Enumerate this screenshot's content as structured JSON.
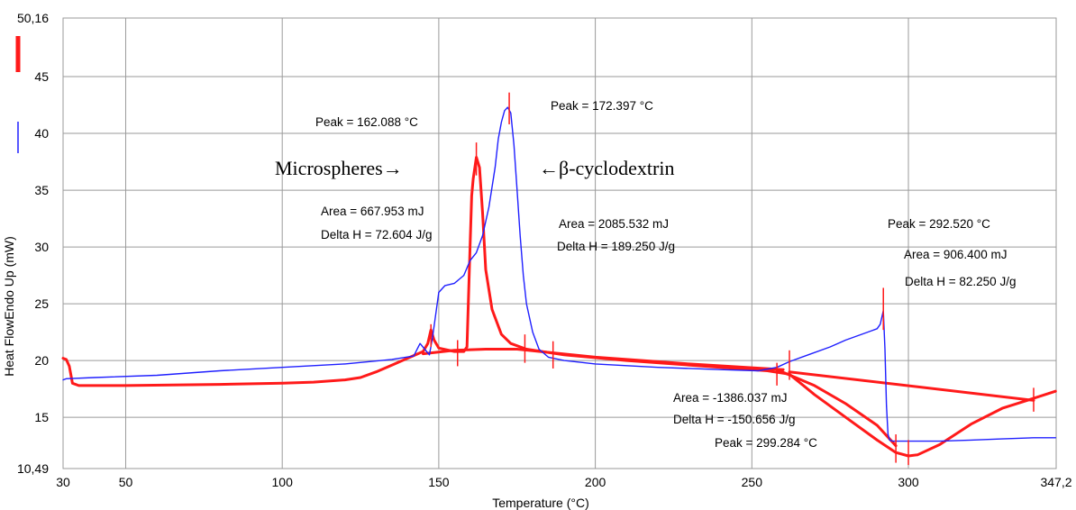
{
  "chart_data": {
    "type": "line",
    "xlabel": "Temperature (°C)",
    "ylabel": "Heat FlowEndo Up (mW)",
    "xlim": [
      30,
      347.2
    ],
    "ylim": [
      10.49,
      50.16
    ],
    "x_ticks": [
      30,
      50,
      100,
      150,
      200,
      250,
      300,
      347.2
    ],
    "x_tick_labels": [
      "30",
      "50",
      "100",
      "150",
      "200",
      "250",
      "300",
      "347,2"
    ],
    "y_ticks": [
      10.49,
      15,
      20,
      25,
      30,
      35,
      40,
      45,
      50.16
    ],
    "y_tick_labels": [
      "10,49",
      "15",
      "20",
      "25",
      "30",
      "35",
      "40",
      "45",
      "50,16"
    ],
    "grid": true,
    "colors": {
      "red": "#ff1a1a",
      "blue": "#1f1fff",
      "grid": "#9a9a9a"
    },
    "series": [
      {
        "color": "red",
        "points": [
          [
            30,
            20.2
          ],
          [
            31,
            20.1
          ],
          [
            32,
            19.5
          ],
          [
            33,
            18.0
          ],
          [
            35,
            17.8
          ],
          [
            50,
            17.8
          ],
          [
            80,
            17.9
          ],
          [
            100,
            18.0
          ],
          [
            110,
            18.1
          ],
          [
            120,
            18.3
          ],
          [
            125,
            18.5
          ],
          [
            130,
            19.0
          ],
          [
            135,
            19.6
          ],
          [
            140,
            20.2
          ],
          [
            145,
            20.8
          ],
          [
            146.5,
            21.5
          ],
          [
            147.5,
            22.7
          ],
          [
            148.5,
            21.8
          ],
          [
            150,
            21.1
          ],
          [
            155,
            20.8
          ],
          [
            158,
            20.8
          ],
          [
            159,
            21.2
          ],
          [
            160,
            30.0
          ],
          [
            160.5,
            34.5
          ],
          [
            161,
            36.0
          ],
          [
            162,
            37.9
          ],
          [
            163,
            37.0
          ],
          [
            164,
            33.0
          ],
          [
            165,
            28.0
          ],
          [
            167,
            24.5
          ],
          [
            170,
            22.3
          ],
          [
            173,
            21.5
          ],
          [
            178,
            21.0
          ],
          [
            190,
            20.5
          ],
          [
            210,
            20.0
          ],
          [
            240,
            19.4
          ],
          [
            255,
            19.1
          ],
          [
            262,
            18.8
          ],
          [
            270,
            17.0
          ],
          [
            280,
            15.0
          ],
          [
            290,
            13.0
          ],
          [
            296,
            11.9
          ],
          [
            300,
            11.6
          ],
          [
            303,
            11.7
          ],
          [
            310,
            12.6
          ],
          [
            320,
            14.4
          ],
          [
            330,
            15.8
          ],
          [
            338,
            16.5
          ],
          [
            347,
            17.3
          ]
        ]
      },
      {
        "color": "red",
        "points": [
          [
            145,
            20.6
          ],
          [
            155,
            20.9
          ],
          [
            165,
            21.0
          ],
          [
            175,
            21.0
          ],
          [
            200,
            20.3
          ],
          [
            230,
            19.7
          ],
          [
            260,
            19.2
          ]
        ]
      },
      {
        "color": "red",
        "points": [
          [
            262,
            19.0
          ],
          [
            340,
            16.5
          ]
        ]
      },
      {
        "color": "red",
        "points": [
          [
            258,
            19.2
          ],
          [
            270,
            17.8
          ],
          [
            280,
            16.2
          ],
          [
            290,
            14.3
          ],
          [
            296,
            12.5
          ]
        ]
      },
      {
        "color": "blue",
        "points": [
          [
            30,
            18.3
          ],
          [
            31,
            18.4
          ],
          [
            40,
            18.5
          ],
          [
            60,
            18.7
          ],
          [
            80,
            19.1
          ],
          [
            100,
            19.4
          ],
          [
            120,
            19.7
          ],
          [
            135,
            20.1
          ],
          [
            142,
            20.4
          ],
          [
            144,
            21.5
          ],
          [
            145.5,
            21.0
          ],
          [
            147,
            20.5
          ],
          [
            148,
            22.0
          ],
          [
            149,
            24.0
          ],
          [
            150,
            26.0
          ],
          [
            152,
            26.6
          ],
          [
            155,
            26.8
          ],
          [
            158,
            27.5
          ],
          [
            160,
            28.8
          ],
          [
            162,
            29.5
          ],
          [
            164,
            31.0
          ],
          [
            166,
            33.5
          ],
          [
            168,
            37.0
          ],
          [
            169,
            39.5
          ],
          [
            170,
            41.0
          ],
          [
            171,
            42.0
          ],
          [
            172,
            42.3
          ],
          [
            173,
            41.8
          ],
          [
            174,
            39.0
          ],
          [
            175,
            35.0
          ],
          [
            176,
            31.0
          ],
          [
            177,
            27.5
          ],
          [
            178,
            25.0
          ],
          [
            180,
            22.5
          ],
          [
            182,
            21.0
          ],
          [
            185,
            20.3
          ],
          [
            190,
            20.0
          ],
          [
            200,
            19.7
          ],
          [
            220,
            19.4
          ],
          [
            240,
            19.2
          ],
          [
            252,
            19.1
          ],
          [
            258,
            19.4
          ],
          [
            262,
            19.9
          ],
          [
            268,
            20.5
          ],
          [
            275,
            21.2
          ],
          [
            280,
            21.8
          ],
          [
            285,
            22.3
          ],
          [
            288,
            22.6
          ],
          [
            290,
            22.8
          ],
          [
            291,
            23.2
          ],
          [
            292,
            24.4
          ],
          [
            292.5,
            21.0
          ],
          [
            293,
            16.0
          ],
          [
            293.5,
            13.5
          ],
          [
            294,
            13.0
          ],
          [
            295,
            12.9
          ],
          [
            310,
            12.9
          ],
          [
            320,
            13.0
          ],
          [
            330,
            13.1
          ],
          [
            340,
            13.2
          ],
          [
            347,
            13.2
          ]
        ]
      }
    ],
    "markers": [
      {
        "x": 147.5,
        "y1": 21.2,
        "y2": 23.2
      },
      {
        "x": 156,
        "y1": 19.5,
        "y2": 21.8
      },
      {
        "x": 162,
        "y1": 36.3,
        "y2": 39.2
      },
      {
        "x": 172.5,
        "y1": 40.8,
        "y2": 43.6
      },
      {
        "x": 177.5,
        "y1": 19.8,
        "y2": 22.3
      },
      {
        "x": 186.5,
        "y1": 19.3,
        "y2": 21.7
      },
      {
        "x": 262,
        "y1": 18.3,
        "y2": 20.9
      },
      {
        "x": 258,
        "y1": 17.8,
        "y2": 19.8
      },
      {
        "x": 292,
        "y1": 22.7,
        "y2": 26.4
      },
      {
        "x": 296,
        "y1": 11.0,
        "y2": 13.5
      },
      {
        "x": 300,
        "y1": 10.8,
        "y2": 13.0
      },
      {
        "x": 340,
        "y1": 15.5,
        "y2": 17.6
      }
    ],
    "annotations": [
      {
        "x": 152.6,
        "y": 21.5,
        "text": "Peak = 172.397 °C"
      },
      {
        "x": 88.1,
        "y": 18.8,
        "text": "Peak = 162.088 °C"
      },
      {
        "x": 88.1,
        "y": 37.2,
        "text": "Microspheres→",
        "big": true
      },
      {
        "x": 179.5,
        "y": 37.2,
        "text": "←β-cyclodextrin",
        "big": true
      },
      {
        "x": 90.1,
        "y": 35.1,
        "text": "Area = 667.953 mJ"
      },
      {
        "x": 90.1,
        "y": 36.9,
        "text": "Delta H = 72.604 J/g"
      },
      {
        "x": 155.2,
        "y": 34.2,
        "text": "Area = 2085.532 mJ"
      },
      {
        "x": 155.2,
        "y": 35.8,
        "text": "Delta H = 189.250 J/g"
      },
      {
        "x": 245.7,
        "y": 34.2,
        "text": "Peak = 292.520 °C"
      },
      {
        "x": 252.5,
        "y": 36.1,
        "text": "Area = 906.400 mJ"
      },
      {
        "x": 252.5,
        "y": 37.4,
        "text": "Delta H = 82.250 J/g"
      },
      {
        "x": 187.3,
        "y": 59.1,
        "text": "Area = -1386.037 mJ"
      },
      {
        "x": 187.3,
        "y": 61.0,
        "text": "Delta H = -150.656 J/g"
      },
      {
        "x": 199.2,
        "y": 62.8,
        "text": "Peak = 299.284 °C"
      }
    ]
  }
}
